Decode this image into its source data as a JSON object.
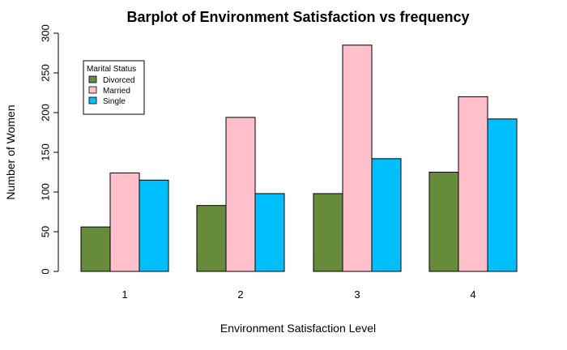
{
  "chart_data": {
    "type": "bar",
    "title": "Barplot of Environment Satisfaction vs frequency",
    "xlabel": "Environment Satisfaction Level",
    "ylabel": "Number of Women",
    "categories": [
      "1",
      "2",
      "3",
      "4"
    ],
    "yticks": [
      0,
      50,
      100,
      150,
      200,
      250,
      300
    ],
    "ylim": [
      0,
      300
    ],
    "legend": {
      "title": "Marital Status",
      "placement": "top-left"
    },
    "series": [
      {
        "name": "Divorced",
        "color": "#668b3b",
        "values": [
          56,
          83,
          98,
          125
        ]
      },
      {
        "name": "Married",
        "color": "#ffc0cb",
        "values": [
          124,
          194,
          285,
          220
        ]
      },
      {
        "name": "Single",
        "color": "#00bfff",
        "values": [
          115,
          98,
          142,
          192
        ]
      }
    ],
    "grid": false
  }
}
